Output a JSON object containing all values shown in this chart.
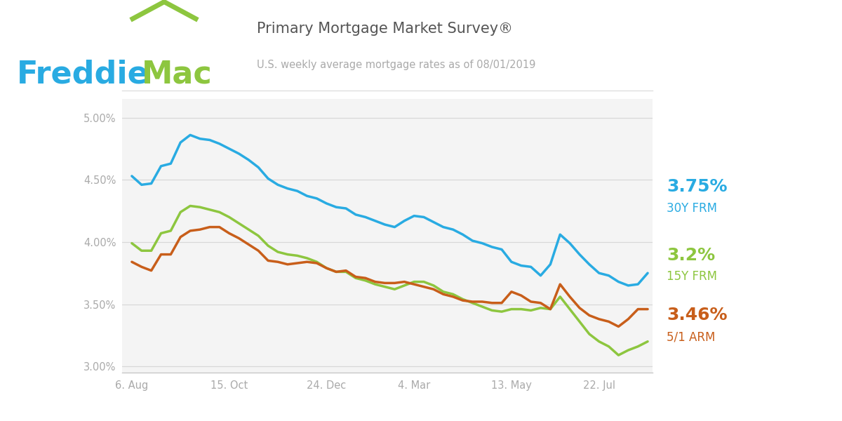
{
  "title1": "Primary Mortgage Market Survey®",
  "title2": "U.S. weekly average mortgage rates as of 08/01/2019",
  "freddie_blue": "#29ABE2",
  "freddie_green": "#8DC63F",
  "line_blue": "#29ABE2",
  "line_green": "#8DC63F",
  "line_orange": "#C85E1A",
  "plot_bg": "#F4F4F4",
  "ylim": [
    2.95,
    5.15
  ],
  "yticks": [
    3.0,
    3.5,
    4.0,
    4.5,
    5.0
  ],
  "xtick_labels": [
    "6. Aug",
    "15. Oct",
    "24. Dec",
    "4. Mar",
    "13. May",
    "22. Jul"
  ],
  "xtick_positions": [
    0,
    10,
    20,
    29,
    39,
    48
  ],
  "val_30y": "3.75%",
  "lbl_30y": "30Y FRM",
  "val_15y": "3.2%",
  "lbl_15y": "15Y FRM",
  "val_arm": "3.46%",
  "lbl_arm": "5/1 ARM",
  "series_30y": [
    4.53,
    4.46,
    4.47,
    4.61,
    4.63,
    4.8,
    4.86,
    4.83,
    4.82,
    4.79,
    4.75,
    4.71,
    4.66,
    4.6,
    4.51,
    4.46,
    4.43,
    4.41,
    4.37,
    4.35,
    4.31,
    4.28,
    4.27,
    4.22,
    4.2,
    4.17,
    4.14,
    4.12,
    4.17,
    4.21,
    4.2,
    4.16,
    4.12,
    4.1,
    4.06,
    4.01,
    3.99,
    3.96,
    3.94,
    3.84,
    3.81,
    3.8,
    3.73,
    3.82,
    4.06,
    3.99,
    3.9,
    3.82,
    3.75,
    3.73,
    3.68,
    3.65,
    3.66,
    3.75
  ],
  "series_15y": [
    3.99,
    3.93,
    3.93,
    4.07,
    4.09,
    4.24,
    4.29,
    4.28,
    4.26,
    4.24,
    4.2,
    4.15,
    4.1,
    4.05,
    3.97,
    3.92,
    3.9,
    3.89,
    3.87,
    3.84,
    3.79,
    3.76,
    3.76,
    3.71,
    3.69,
    3.66,
    3.64,
    3.62,
    3.65,
    3.68,
    3.68,
    3.65,
    3.6,
    3.58,
    3.54,
    3.51,
    3.48,
    3.45,
    3.44,
    3.46,
    3.46,
    3.45,
    3.47,
    3.46,
    3.56,
    3.46,
    3.36,
    3.26,
    3.2,
    3.16,
    3.09,
    3.13,
    3.16,
    3.2
  ],
  "series_arm": [
    3.84,
    3.8,
    3.77,
    3.9,
    3.9,
    4.04,
    4.09,
    4.1,
    4.12,
    4.12,
    4.07,
    4.03,
    3.98,
    3.93,
    3.85,
    3.84,
    3.82,
    3.83,
    3.84,
    3.83,
    3.79,
    3.76,
    3.77,
    3.72,
    3.71,
    3.68,
    3.67,
    3.67,
    3.68,
    3.66,
    3.64,
    3.62,
    3.58,
    3.56,
    3.53,
    3.52,
    3.52,
    3.51,
    3.51,
    3.6,
    3.57,
    3.52,
    3.51,
    3.46,
    3.66,
    3.56,
    3.47,
    3.41,
    3.38,
    3.36,
    3.32,
    3.38,
    3.46,
    3.46
  ]
}
